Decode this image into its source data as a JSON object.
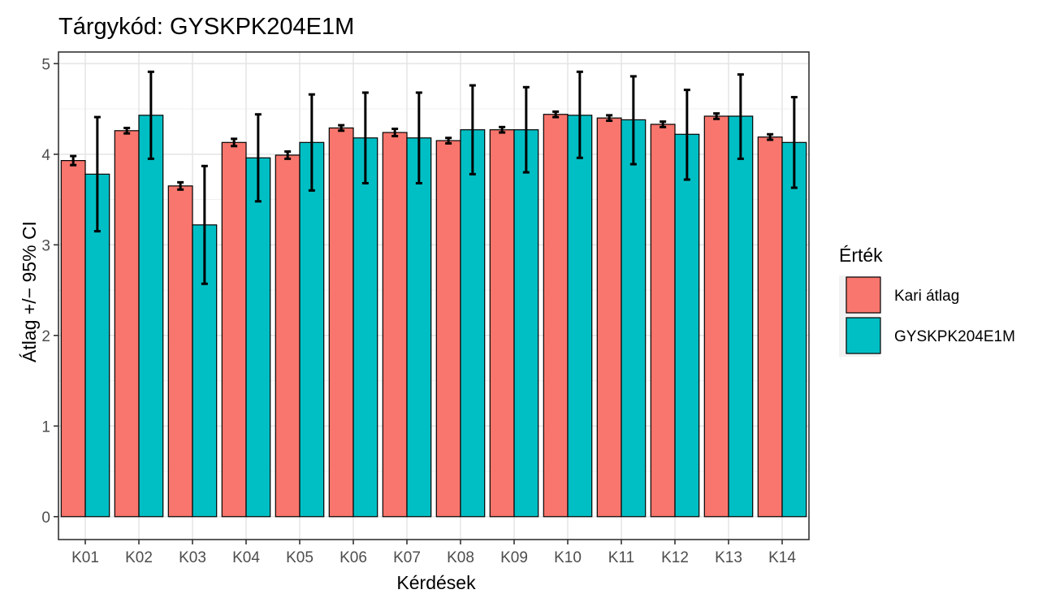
{
  "chart_data": {
    "type": "bar",
    "title": "Tárgykód:  GYSKPK204E1M",
    "xlabel": "Kérdések",
    "ylabel": "Átlag +/− 95% CI",
    "ylim": [
      0,
      5
    ],
    "yticks": [
      "0",
      "1",
      "2",
      "3",
      "4",
      "5"
    ],
    "grid": true,
    "legend_position": "right",
    "legend_title": "Érték",
    "categories": [
      "K01",
      "K02",
      "K03",
      "K04",
      "K05",
      "K06",
      "K07",
      "K08",
      "K09",
      "K10",
      "K11",
      "K12",
      "K13",
      "K14"
    ],
    "series": [
      {
        "name": "Kari átlag",
        "color": "#F8766D",
        "values": [
          3.93,
          4.26,
          3.65,
          4.13,
          3.99,
          4.29,
          4.24,
          4.15,
          4.27,
          4.44,
          4.4,
          4.33,
          4.42,
          4.19
        ],
        "ci_low": [
          3.88,
          4.23,
          3.61,
          4.09,
          3.95,
          4.26,
          4.2,
          4.12,
          4.24,
          4.41,
          4.37,
          4.3,
          4.39,
          4.16
        ],
        "ci_high": [
          3.98,
          4.29,
          3.69,
          4.17,
          4.03,
          4.32,
          4.28,
          4.18,
          4.3,
          4.47,
          4.43,
          4.36,
          4.45,
          4.22
        ]
      },
      {
        "name": "GYSKPK204E1M",
        "color": "#00BFC4",
        "values": [
          3.78,
          4.43,
          3.22,
          3.96,
          4.13,
          4.18,
          4.18,
          4.27,
          4.27,
          4.43,
          4.38,
          4.22,
          4.42,
          4.13
        ],
        "ci_low": [
          3.15,
          3.95,
          2.57,
          3.48,
          3.6,
          3.68,
          3.68,
          3.78,
          3.8,
          3.96,
          3.89,
          3.72,
          3.95,
          3.63
        ],
        "ci_high": [
          4.41,
          4.91,
          3.87,
          4.44,
          4.66,
          4.68,
          4.68,
          4.76,
          4.74,
          4.91,
          4.86,
          4.71,
          4.88,
          4.63
        ]
      }
    ]
  }
}
